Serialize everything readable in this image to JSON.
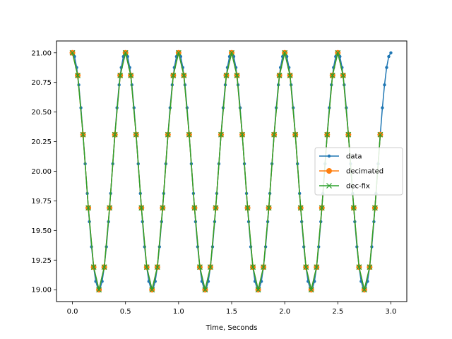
{
  "chart_data": {
    "type": "line",
    "xlabel": "Time, Seconds",
    "ylabel": "",
    "xlim": [
      -0.15,
      3.15
    ],
    "ylim": [
      18.9,
      21.1
    ],
    "xticks": [
      0.0,
      0.5,
      1.0,
      1.5,
      2.0,
      2.5,
      3.0
    ],
    "xtick_labels": [
      "0.0",
      "0.5",
      "1.0",
      "1.5",
      "2.0",
      "2.5",
      "3.0"
    ],
    "yticks": [
      19.0,
      19.25,
      19.5,
      19.75,
      20.0,
      20.25,
      20.5,
      20.75,
      21.0
    ],
    "ytick_labels": [
      "19.00",
      "19.25",
      "19.50",
      "19.75",
      "20.00",
      "20.25",
      "20.50",
      "20.75",
      "21.00"
    ],
    "grid": false,
    "legend_placement": "center-right",
    "signal": {
      "offset": 20,
      "amplitude": 1,
      "frequency_hz": 2,
      "shape": "cosine"
    },
    "series": [
      {
        "name": "data",
        "color": "#1f77b4",
        "marker": "dot",
        "x_start": 0,
        "x_end": 3.0,
        "x_step": 0.02
      },
      {
        "name": "decimated",
        "color": "#ff7f0e",
        "marker": "circle",
        "x_start": 0,
        "x_end": 2.9,
        "x_step": 0.05
      },
      {
        "name": "dec-fix",
        "color": "#2ca02c",
        "marker": "x",
        "x_start": 0,
        "x_end": 2.9,
        "x_step": 0.05
      }
    ]
  }
}
